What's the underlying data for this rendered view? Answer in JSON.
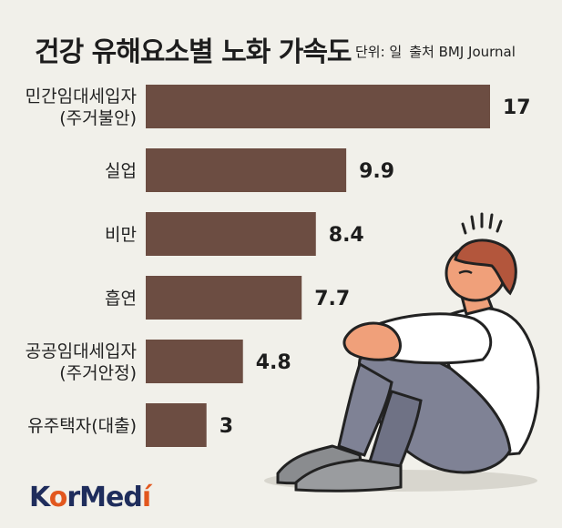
{
  "header": {
    "title": "건강 유해요소별 노화 가속도",
    "unit": "단위: 일",
    "source": "출처 BMJ Journal"
  },
  "brand": {
    "logo_prefix": "K",
    "logo_o": "o",
    "logo_middle": "rMed",
    "logo_accent": "í",
    "colors": {
      "navy": "#1f2d5c",
      "orange": "#e2571e"
    }
  },
  "illustration": {
    "icon": "stressed-man-sitting-hugging-knees-icon"
  },
  "colors": {
    "bar": "#6c4d42",
    "background": "#f1f0ea"
  },
  "chart_data": {
    "type": "bar",
    "orientation": "horizontal",
    "title": "건강 유해요소별 노화 가속도",
    "categories": [
      [
        "민간임대세입자",
        "(주거불안)"
      ],
      [
        "실업"
      ],
      [
        "비만"
      ],
      [
        "흡연"
      ],
      [
        "공공임대세입자",
        "(주거안정)"
      ],
      [
        "유주택자(대출)"
      ]
    ],
    "values": [
      17,
      9.9,
      8.4,
      7.7,
      4.8,
      3
    ],
    "value_labels": [
      "17",
      "9.9",
      "8.4",
      "7.7",
      "4.8",
      "3"
    ],
    "xlim": [
      0,
      17
    ],
    "grid": false
  }
}
